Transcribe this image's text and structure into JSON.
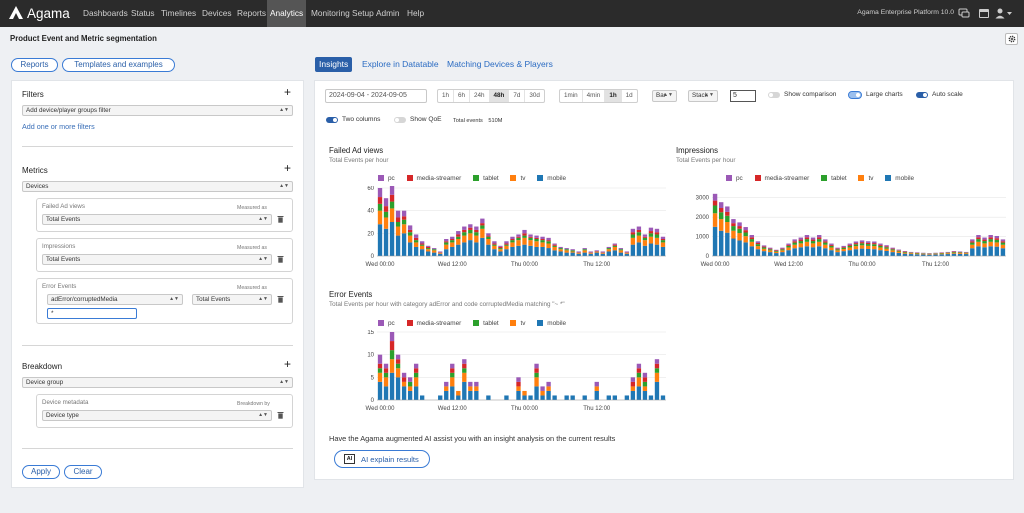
{
  "nav": {
    "brand": "Agama",
    "items": [
      "Dashboards",
      "Status",
      "Timelines",
      "Devices",
      "Reports",
      "Analytics",
      "Monitoring Setup",
      "Admin",
      "Help"
    ],
    "active": "Analytics",
    "platform": "Agama Enterprise Platform 10.0"
  },
  "page": {
    "title": "Product Event and Metric segmentation"
  },
  "top_buttons": {
    "reports": "Reports",
    "templates": "Templates and examples"
  },
  "left": {
    "filters": {
      "label": "Filters",
      "select": "Add device/player groups filter",
      "link": "Add one or more filters"
    },
    "metrics": {
      "label": "Metrics",
      "group": "Devices",
      "items": [
        {
          "name": "Failed Ad views",
          "measured_label": "Measured as",
          "measured": "Total Events"
        },
        {
          "name": "Impressions",
          "measured_label": "Measured as",
          "measured": "Total Events"
        },
        {
          "name": "Error Events",
          "measured_label": "Measured as",
          "filter": "adError/corruptedMedia",
          "measured": "Total Events",
          "input": "*"
        }
      ]
    },
    "breakdown": {
      "label": "Breakdown",
      "group": "Device group",
      "meta_label": "Device metadata",
      "by_label": "Breakdown by",
      "value": "Device type"
    },
    "apply": "Apply",
    "clear": "Clear"
  },
  "tabs": [
    "Insights",
    "Explore in Datatable",
    "Matching Devices & Players"
  ],
  "controls": {
    "date_range": "2024-09-04 - 2024-09-05",
    "ranges": [
      "1h",
      "6h",
      "24h",
      "48h",
      "7d",
      "30d"
    ],
    "range_active": "48h",
    "granularity": [
      "1min",
      "4min",
      "1h",
      "1d"
    ],
    "gran_active": "1h",
    "chart_type": "Bar",
    "stack": "Stack",
    "top_n": "5",
    "show_comparison": "Show comparison",
    "large_charts": "Large charts",
    "auto_scale": "Auto scale",
    "two_columns": "Two columns",
    "show_qoe": "Show QoE",
    "total_events_label": "Total events",
    "total_events": "510M"
  },
  "legend": [
    {
      "name": "pc",
      "color": "#9b59b6"
    },
    {
      "name": "media-streamer",
      "color": "#d62728"
    },
    {
      "name": "tablet",
      "color": "#2ca02c"
    },
    {
      "name": "tv",
      "color": "#ff7f0e"
    },
    {
      "name": "mobile",
      "color": "#1f77b4"
    }
  ],
  "charts": {
    "failed": {
      "title": "Failed Ad views",
      "subtitle": "Total Events per hour"
    },
    "impressions": {
      "title": "Impressions",
      "subtitle": "Total Events per hour"
    },
    "errors": {
      "title": "Error Events",
      "subtitle": "Total Events per hour with category adError and code corruptedMedia matching \"~ *\""
    }
  },
  "chart_data": [
    {
      "type": "bar",
      "title": "Failed Ad views",
      "subtitle": "Total Events per hour",
      "stacked": true,
      "x_ticks": [
        "Wed 00:00",
        "Wed 12:00",
        "Thu 00:00",
        "Thu 12:00"
      ],
      "ylim": [
        0,
        60
      ],
      "y_ticks": [
        0,
        20,
        40,
        60
      ],
      "categories": [
        0,
        1,
        2,
        3,
        4,
        5,
        6,
        7,
        8,
        9,
        10,
        11,
        12,
        13,
        14,
        15,
        16,
        17,
        18,
        19,
        20,
        21,
        22,
        23,
        24,
        25,
        26,
        27,
        28,
        29,
        30,
        31,
        32,
        33,
        34,
        35,
        36,
        37,
        38,
        39,
        40,
        41,
        42,
        43,
        44,
        45,
        46,
        47
      ],
      "series": [
        {
          "name": "mobile",
          "values": [
            28,
            24,
            30,
            18,
            20,
            12,
            8,
            6,
            4,
            3,
            2,
            6,
            8,
            10,
            12,
            14,
            12,
            16,
            10,
            6,
            4,
            6,
            8,
            9,
            10,
            9,
            8,
            8,
            7,
            5,
            4,
            3,
            3,
            2,
            3,
            2,
            3,
            2,
            4,
            5,
            3,
            2,
            10,
            12,
            9,
            11,
            10,
            8
          ]
        },
        {
          "name": "tv",
          "values": [
            12,
            10,
            12,
            8,
            8,
            6,
            4,
            3,
            2,
            2,
            1,
            4,
            4,
            5,
            6,
            6,
            6,
            8,
            5,
            3,
            2,
            3,
            4,
            5,
            6,
            5,
            5,
            4,
            4,
            3,
            2,
            2,
            1,
            1,
            2,
            1,
            1,
            1,
            2,
            3,
            2,
            1,
            6,
            6,
            5,
            6,
            6,
            4
          ]
        },
        {
          "name": "tablet",
          "values": [
            6,
            5,
            6,
            4,
            4,
            3,
            2,
            1,
            1,
            1,
            0,
            2,
            2,
            2,
            3,
            3,
            3,
            3,
            2,
            1,
            1,
            1,
            2,
            2,
            2,
            2,
            2,
            2,
            2,
            1,
            1,
            1,
            1,
            0,
            1,
            0,
            0,
            0,
            1,
            1,
            1,
            0,
            3,
            3,
            2,
            3,
            3,
            2
          ]
        },
        {
          "name": "media-streamer",
          "values": [
            6,
            5,
            6,
            4,
            3,
            2,
            2,
            1,
            1,
            0,
            0,
            1,
            1,
            2,
            2,
            2,
            2,
            2,
            1,
            1,
            1,
            1,
            1,
            1,
            2,
            1,
            1,
            1,
            1,
            1,
            0,
            0,
            0,
            0,
            0,
            0,
            0,
            0,
            0,
            1,
            0,
            0,
            2,
            2,
            1,
            2,
            2,
            1
          ]
        },
        {
          "name": "pc",
          "values": [
            8,
            7,
            8,
            6,
            5,
            4,
            3,
            2,
            1,
            1,
            1,
            2,
            2,
            3,
            3,
            3,
            3,
            4,
            2,
            2,
            1,
            2,
            2,
            2,
            3,
            2,
            2,
            2,
            2,
            1,
            1,
            1,
            1,
            1,
            1,
            1,
            1,
            1,
            1,
            1,
            1,
            1,
            3,
            3,
            2,
            3,
            3,
            2
          ]
        }
      ]
    },
    {
      "type": "bar",
      "title": "Impressions",
      "subtitle": "Total Events per hour",
      "stacked": true,
      "x_ticks": [
        "Wed 00:00",
        "Wed 12:00",
        "Thu 00:00",
        "Thu 12:00"
      ],
      "ylim": [
        0,
        3500
      ],
      "y_ticks": [
        0,
        1000,
        2000,
        3000
      ],
      "categories": [
        0,
        1,
        2,
        3,
        4,
        5,
        6,
        7,
        8,
        9,
        10,
        11,
        12,
        13,
        14,
        15,
        16,
        17,
        18,
        19,
        20,
        21,
        22,
        23,
        24,
        25,
        26,
        27,
        28,
        29,
        30,
        31,
        32,
        33,
        34,
        35,
        36,
        37,
        38,
        39,
        40,
        41,
        42,
        43,
        44,
        45,
        46,
        47
      ],
      "series": [
        {
          "name": "mobile",
          "values": [
            1500,
            1300,
            1200,
            900,
            800,
            700,
            500,
            350,
            250,
            200,
            150,
            200,
            300,
            400,
            450,
            500,
            450,
            500,
            400,
            300,
            200,
            250,
            300,
            350,
            380,
            360,
            350,
            300,
            260,
            200,
            160,
            120,
            100,
            90,
            80,
            70,
            80,
            90,
            100,
            120,
            110,
            100,
            400,
            500,
            450,
            500,
            480,
            400
          ]
        },
        {
          "name": "tv",
          "values": [
            700,
            600,
            550,
            400,
            380,
            320,
            230,
            160,
            120,
            90,
            70,
            90,
            140,
            180,
            200,
            230,
            200,
            230,
            180,
            140,
            90,
            110,
            140,
            160,
            170,
            160,
            160,
            140,
            120,
            90,
            70,
            55,
            45,
            40,
            35,
            30,
            35,
            40,
            45,
            55,
            50,
            45,
            180,
            230,
            200,
            230,
            220,
            180
          ]
        },
        {
          "name": "tablet",
          "values": [
            400,
            350,
            320,
            240,
            220,
            190,
            140,
            100,
            70,
            55,
            40,
            55,
            80,
            110,
            120,
            140,
            120,
            140,
            110,
            80,
            55,
            65,
            80,
            95,
            100,
            95,
            95,
            80,
            70,
            55,
            40,
            32,
            26,
            24,
            20,
            18,
            20,
            24,
            26,
            32,
            30,
            26,
            110,
            140,
            120,
            140,
            130,
            110
          ]
        },
        {
          "name": "media-streamer",
          "values": [
            250,
            220,
            200,
            150,
            140,
            120,
            90,
            60,
            45,
            35,
            25,
            35,
            50,
            70,
            75,
            90,
            75,
            90,
            70,
            50,
            35,
            40,
            50,
            60,
            65,
            60,
            60,
            50,
            45,
            35,
            25,
            20,
            16,
            15,
            13,
            11,
            13,
            15,
            16,
            20,
            18,
            16,
            70,
            90,
            75,
            90,
            85,
            70
          ]
        },
        {
          "name": "pc",
          "values": [
            350,
            300,
            280,
            210,
            190,
            160,
            120,
            85,
            60,
            48,
            35,
            48,
            70,
            95,
            105,
            120,
            105,
            120,
            95,
            70,
            48,
            55,
            70,
            82,
            88,
            82,
            82,
            70,
            60,
            48,
            35,
            28,
            22,
            20,
            18,
            16,
            18,
            20,
            22,
            28,
            26,
            22,
            95,
            120,
            105,
            120,
            115,
            95
          ]
        }
      ]
    },
    {
      "type": "bar",
      "title": "Error Events",
      "subtitle": "Total Events per hour with category adError and code corruptedMedia matching \"~ *\"",
      "stacked": true,
      "x_ticks": [
        "Wed 00:00",
        "Wed 12:00",
        "Thu 00:00",
        "Thu 12:00"
      ],
      "ylim": [
        0,
        15
      ],
      "y_ticks": [
        0,
        5,
        10,
        15
      ],
      "categories": [
        0,
        1,
        2,
        3,
        4,
        5,
        6,
        7,
        8,
        9,
        10,
        11,
        12,
        13,
        14,
        15,
        16,
        17,
        18,
        19,
        20,
        21,
        22,
        23,
        24,
        25,
        26,
        27,
        28,
        29,
        30,
        31,
        32,
        33,
        34,
        35,
        36,
        37,
        38,
        39,
        40,
        41,
        42,
        43,
        44,
        45,
        46,
        47
      ],
      "series": [
        {
          "name": "mobile",
          "values": [
            4,
            3,
            6,
            5,
            3,
            2,
            3,
            1,
            0,
            0,
            1,
            2,
            3,
            1,
            4,
            2,
            2,
            0,
            1,
            0,
            0,
            1,
            0,
            2,
            1,
            1,
            3,
            1,
            2,
            1,
            0,
            1,
            1,
            0,
            1,
            0,
            2,
            0,
            1,
            1,
            0,
            1,
            2,
            3,
            2,
            1,
            4,
            1
          ]
        },
        {
          "name": "tv",
          "values": [
            2,
            2,
            3,
            2,
            1,
            1,
            2,
            0,
            0,
            0,
            0,
            1,
            2,
            1,
            2,
            1,
            1,
            0,
            0,
            0,
            0,
            0,
            0,
            1,
            1,
            0,
            2,
            1,
            1,
            0,
            0,
            0,
            0,
            0,
            0,
            0,
            1,
            0,
            0,
            0,
            0,
            0,
            1,
            2,
            1,
            0,
            2,
            0
          ]
        },
        {
          "name": "tablet",
          "values": [
            1,
            1,
            2,
            1,
            0,
            1,
            1,
            0,
            0,
            0,
            0,
            0,
            1,
            0,
            1,
            0,
            0,
            0,
            0,
            0,
            0,
            0,
            0,
            0,
            0,
            0,
            1,
            0,
            0,
            0,
            0,
            0,
            0,
            0,
            0,
            0,
            0,
            0,
            0,
            0,
            0,
            0,
            0,
            1,
            1,
            0,
            1,
            0
          ]
        },
        {
          "name": "media-streamer",
          "values": [
            1,
            1,
            2,
            1,
            1,
            0,
            1,
            0,
            0,
            0,
            0,
            0,
            1,
            0,
            1,
            0,
            0,
            0,
            0,
            0,
            0,
            0,
            0,
            1,
            0,
            0,
            1,
            0,
            0,
            0,
            0,
            0,
            0,
            0,
            0,
            0,
            0,
            0,
            0,
            0,
            0,
            0,
            1,
            1,
            1,
            0,
            1,
            0
          ]
        },
        {
          "name": "pc",
          "values": [
            2,
            1,
            2,
            1,
            1,
            1,
            1,
            0,
            0,
            0,
            0,
            1,
            1,
            0,
            1,
            1,
            1,
            0,
            0,
            0,
            0,
            0,
            0,
            1,
            0,
            0,
            1,
            1,
            1,
            0,
            0,
            0,
            0,
            0,
            0,
            0,
            1,
            0,
            0,
            0,
            0,
            0,
            1,
            1,
            1,
            0,
            1,
            0
          ]
        }
      ]
    }
  ],
  "ai": {
    "prompt": "Have the Agama augmented AI assist you with an insight analysis on the current results",
    "button": "AI explain results",
    "badge": "AI"
  }
}
